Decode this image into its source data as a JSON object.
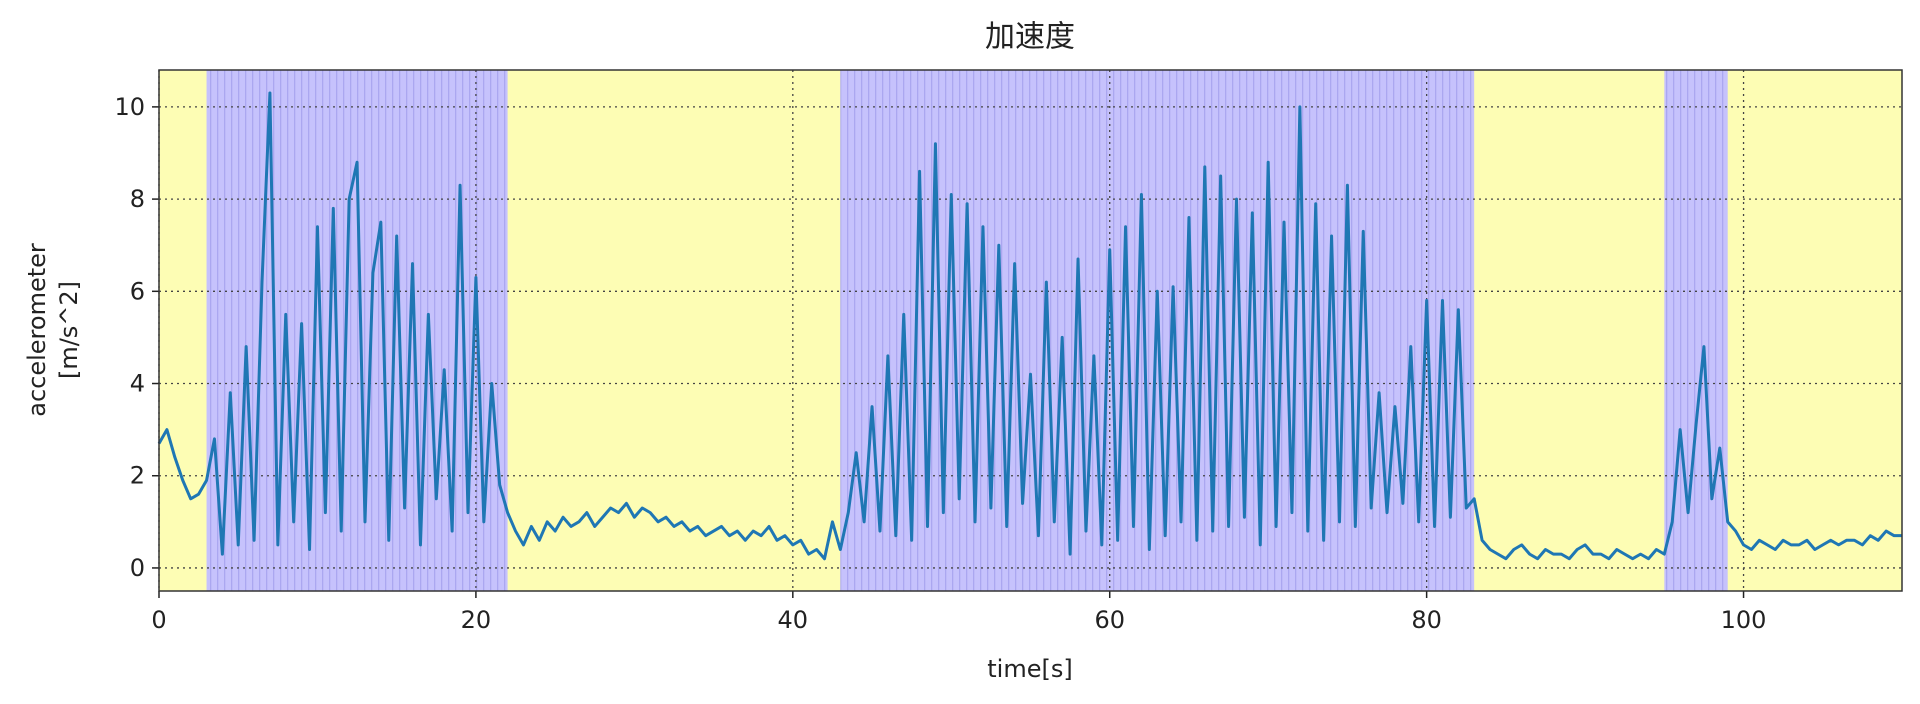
{
  "chart_data": {
    "type": "line",
    "title": "加速度",
    "xlabel": "time[s]",
    "ylabel": [
      "accelerometer",
      "[m/s^2]"
    ],
    "xlim": [
      0,
      110
    ],
    "xticks": [
      0,
      20,
      40,
      60,
      80,
      100
    ],
    "ylim": [
      -0.5,
      10.8
    ],
    "yticks": [
      0,
      2,
      4,
      6,
      8,
      10
    ],
    "grid": true,
    "background_color": "#fdfdb4",
    "color": "#1f77b4",
    "shaded_regions": [
      {
        "start": 3,
        "end": 22,
        "color": "#c6c2fc"
      },
      {
        "start": 43,
        "end": 83,
        "color": "#c6c2fc"
      },
      {
        "start": 95,
        "end": 99,
        "color": "#c6c2fc"
      }
    ],
    "x": [
      0,
      0.5,
      1,
      1.5,
      2,
      2.5,
      3,
      3.5,
      4,
      4.5,
      5,
      5.5,
      6,
      6.5,
      7,
      7.5,
      8,
      8.5,
      9,
      9.5,
      10,
      10.5,
      11,
      11.5,
      12,
      12.5,
      13,
      13.5,
      14,
      14.5,
      15,
      15.5,
      16,
      16.5,
      17,
      17.5,
      18,
      18.5,
      19,
      19.5,
      20,
      20.5,
      21,
      21.5,
      22,
      22.5,
      23,
      23.5,
      24,
      24.5,
      25,
      25.5,
      26,
      26.5,
      27,
      27.5,
      28,
      28.5,
      29,
      29.5,
      30,
      30.5,
      31,
      31.5,
      32,
      32.5,
      33,
      33.5,
      34,
      34.5,
      35,
      35.5,
      36,
      36.5,
      37,
      37.5,
      38,
      38.5,
      39,
      39.5,
      40,
      40.5,
      41,
      41.5,
      42,
      42.5,
      43,
      43.5,
      44,
      44.5,
      45,
      45.5,
      46,
      46.5,
      47,
      47.5,
      48,
      48.5,
      49,
      49.5,
      50,
      50.5,
      51,
      51.5,
      52,
      52.5,
      53,
      53.5,
      54,
      54.5,
      55,
      55.5,
      56,
      56.5,
      57,
      57.5,
      58,
      58.5,
      59,
      59.5,
      60,
      60.5,
      61,
      61.5,
      62,
      62.5,
      63,
      63.5,
      64,
      64.5,
      65,
      65.5,
      66,
      66.5,
      67,
      67.5,
      68,
      68.5,
      69,
      69.5,
      70,
      70.5,
      71,
      71.5,
      72,
      72.5,
      73,
      73.5,
      74,
      74.5,
      75,
      75.5,
      76,
      76.5,
      77,
      77.5,
      78,
      78.5,
      79,
      79.5,
      80,
      80.5,
      81,
      81.5,
      82,
      82.5,
      83,
      83.5,
      84,
      84.5,
      85,
      85.5,
      86,
      86.5,
      87,
      87.5,
      88,
      88.5,
      89,
      89.5,
      90,
      90.5,
      91,
      91.5,
      92,
      92.5,
      93,
      93.5,
      94,
      94.5,
      95,
      95.5,
      96,
      96.5,
      97,
      97.5,
      98,
      98.5,
      99,
      99.5,
      100,
      100.5,
      101,
      101.5,
      102,
      102.5,
      103,
      103.5,
      104,
      104.5,
      105,
      105.5,
      106,
      106.5,
      107,
      107.5,
      108,
      108.5,
      109,
      109.5,
      110
    ],
    "values": [
      2.7,
      3.0,
      2.4,
      1.9,
      1.5,
      1.6,
      1.9,
      2.8,
      0.3,
      3.8,
      0.5,
      4.8,
      0.6,
      6.2,
      10.3,
      0.5,
      5.5,
      1.0,
      5.3,
      0.4,
      7.4,
      1.2,
      7.8,
      0.8,
      8.0,
      8.8,
      1.0,
      6.4,
      7.5,
      0.6,
      7.2,
      1.3,
      6.6,
      0.5,
      5.5,
      1.5,
      4.3,
      0.8,
      8.3,
      1.2,
      6.3,
      1.0,
      4.0,
      1.8,
      1.2,
      0.8,
      0.5,
      0.9,
      0.6,
      1.0,
      0.8,
      1.1,
      0.9,
      1.0,
      1.2,
      0.9,
      1.1,
      1.3,
      1.2,
      1.4,
      1.1,
      1.3,
      1.2,
      1.0,
      1.1,
      0.9,
      1.0,
      0.8,
      0.9,
      0.7,
      0.8,
      0.9,
      0.7,
      0.8,
      0.6,
      0.8,
      0.7,
      0.9,
      0.6,
      0.7,
      0.5,
      0.6,
      0.3,
      0.4,
      0.2,
      1.0,
      0.4,
      1.2,
      2.5,
      1.0,
      3.5,
      0.8,
      4.6,
      0.7,
      5.5,
      0.6,
      8.6,
      0.9,
      9.2,
      1.2,
      8.1,
      1.5,
      7.9,
      1.0,
      7.4,
      1.3,
      7.0,
      0.9,
      6.6,
      1.4,
      4.2,
      0.7,
      6.2,
      1.0,
      5.0,
      0.3,
      6.7,
      0.8,
      4.6,
      0.5,
      6.9,
      0.6,
      7.4,
      0.9,
      8.1,
      0.4,
      6.0,
      0.7,
      6.1,
      1.0,
      7.6,
      0.6,
      8.7,
      0.8,
      8.5,
      0.9,
      8.0,
      1.1,
      7.7,
      0.5,
      8.8,
      0.9,
      7.5,
      1.2,
      10.0,
      0.8,
      7.9,
      0.6,
      7.2,
      1.0,
      8.3,
      0.9,
      7.3,
      1.3,
      3.8,
      1.2,
      3.5,
      1.4,
      4.8,
      1.0,
      5.8,
      0.9,
      5.8,
      1.1,
      5.6,
      1.3,
      1.5,
      0.6,
      0.4,
      0.3,
      0.2,
      0.4,
      0.5,
      0.3,
      0.2,
      0.4,
      0.3,
      0.3,
      0.2,
      0.4,
      0.5,
      0.3,
      0.3,
      0.2,
      0.4,
      0.3,
      0.2,
      0.3,
      0.2,
      0.4,
      0.3,
      1.0,
      3.0,
      1.2,
      3.1,
      4.8,
      1.5,
      2.6,
      1.0,
      0.8,
      0.5,
      0.4,
      0.6,
      0.5,
      0.4,
      0.6,
      0.5,
      0.5,
      0.6,
      0.4,
      0.5,
      0.6,
      0.5,
      0.6,
      0.6,
      0.5,
      0.7,
      0.6,
      0.8,
      0.7,
      0.7
    ]
  }
}
